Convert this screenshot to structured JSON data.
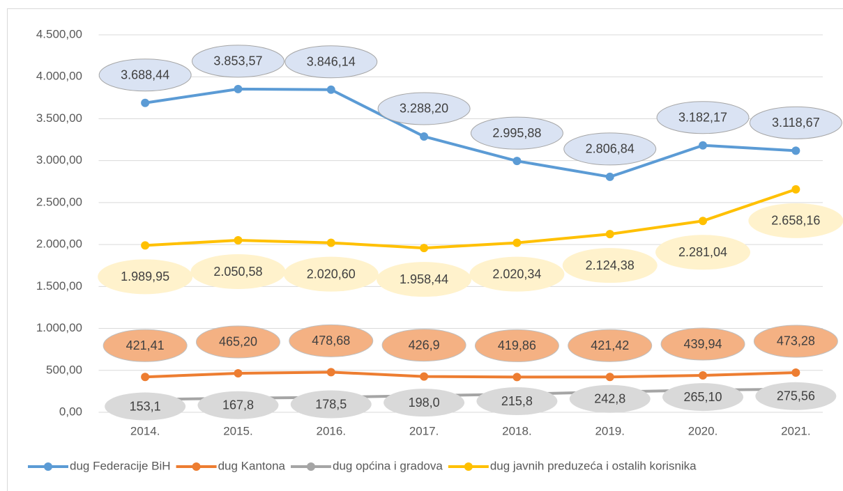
{
  "chart_data": {
    "type": "line",
    "categories": [
      "2014.",
      "2015.",
      "2016.",
      "2017.",
      "2018.",
      "2019.",
      "2020.",
      "2021."
    ],
    "series": [
      {
        "name": "dug Federacije BiH",
        "color": "#5b9bd5",
        "values": [
          3688.44,
          3853.57,
          3846.14,
          3288.2,
          2995.88,
          2806.84,
          3182.17,
          3118.67
        ],
        "value_labels": [
          "3.688,44",
          "3.853,57",
          "3.846,14",
          "3.288,20",
          "2.995,88",
          "2.806,84",
          "3.182,17",
          "3.118,67"
        ]
      },
      {
        "name": "dug Kantona",
        "color": "#ed7d31",
        "values": [
          421.41,
          465.2,
          478.68,
          426.9,
          419.86,
          421.42,
          439.94,
          473.28
        ],
        "value_labels": [
          "421,41",
          "465,20",
          "478,68",
          "426,9",
          "419,86",
          "421,42",
          "439,94",
          "473,28"
        ]
      },
      {
        "name": "dug općina i gradova",
        "color": "#a5a5a5",
        "values": [
          153.1,
          167.8,
          178.5,
          198.0,
          215.8,
          242.8,
          265.1,
          275.56
        ],
        "value_labels": [
          "153,1",
          "167,8",
          "178,5",
          "198,0",
          "215,8",
          "242,8",
          "265,10",
          "275,56"
        ]
      },
      {
        "name": "dug javnih preduzeća i ostalih korisnika",
        "color": "#ffc000",
        "values": [
          1989.95,
          2050.58,
          2020.6,
          1958.44,
          2020.34,
          2124.38,
          2281.04,
          2658.16
        ],
        "value_labels": [
          "1.989,95",
          "2.050,58",
          "2.020,60",
          "1.958,44",
          "2.020,34",
          "2.124,38",
          "2.281,04",
          "2.658,16"
        ]
      }
    ],
    "ylim": [
      0,
      4500
    ],
    "yticks": [
      {
        "value": 0,
        "label": "0,00"
      },
      {
        "value": 500,
        "label": "500,00"
      },
      {
        "value": 1000,
        "label": "1.000,00"
      },
      {
        "value": 1500,
        "label": "1.500,00"
      },
      {
        "value": 2000,
        "label": "2.000,00"
      },
      {
        "value": 2500,
        "label": "2.500,00"
      },
      {
        "value": 3000,
        "label": "3.000,00"
      },
      {
        "value": 3500,
        "label": "3.500,00"
      },
      {
        "value": 4000,
        "label": "4.000,00"
      },
      {
        "value": 4500,
        "label": "4.500,00"
      }
    ],
    "grid": true,
    "legend": "bottom"
  }
}
